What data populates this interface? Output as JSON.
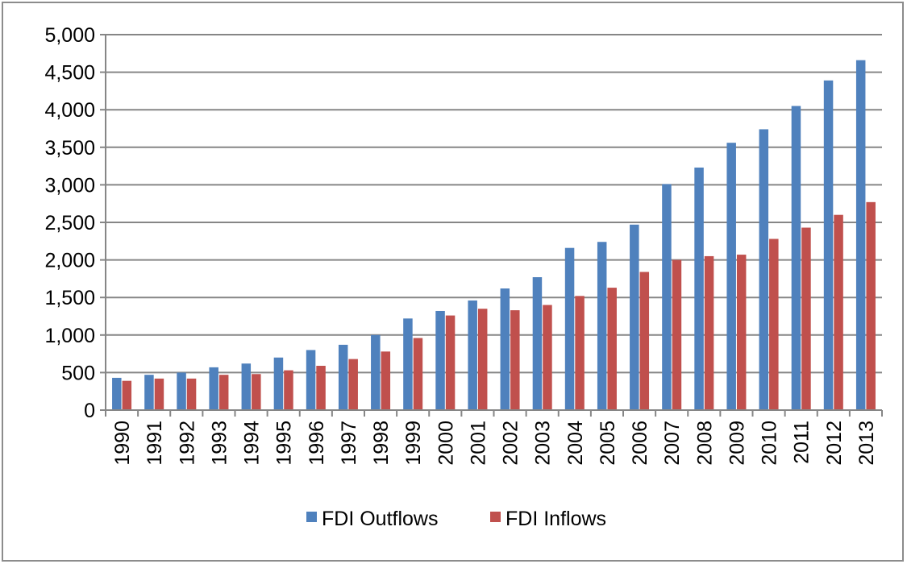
{
  "chart_data": {
    "type": "bar",
    "title": "",
    "xlabel": "",
    "ylabel": "",
    "categories": [
      "1990",
      "1991",
      "1992",
      "1993",
      "1994",
      "1995",
      "1996",
      "1997",
      "1998",
      "1999",
      "2000",
      "2001",
      "2002",
      "2003",
      "2004",
      "2005",
      "2006",
      "2007",
      "2008",
      "2009",
      "2010",
      "2011",
      "2012",
      "2013"
    ],
    "series": [
      {
        "name": "FDI Outflows",
        "color": "#4f81bd",
        "values": [
          430,
          470,
          500,
          570,
          620,
          700,
          800,
          870,
          1000,
          1220,
          1320,
          1460,
          1620,
          1770,
          2160,
          2240,
          2470,
          3010,
          3230,
          3560,
          3740,
          4050,
          4390,
          4660
        ]
      },
      {
        "name": "FDI Inflows",
        "color": "#c0504d",
        "values": [
          390,
          420,
          420,
          470,
          480,
          530,
          590,
          680,
          780,
          960,
          1260,
          1350,
          1330,
          1400,
          1520,
          1630,
          1840,
          2000,
          2050,
          2070,
          2280,
          2430,
          2600,
          2770
        ]
      }
    ],
    "ylim": [
      0,
      5000
    ],
    "yticks": [
      "0",
      "500",
      "1,000",
      "1,500",
      "2,000",
      "2,500",
      "3,000",
      "3,500",
      "4,000",
      "4,500",
      "5,000"
    ],
    "grid": true,
    "legend_position": "bottom"
  }
}
